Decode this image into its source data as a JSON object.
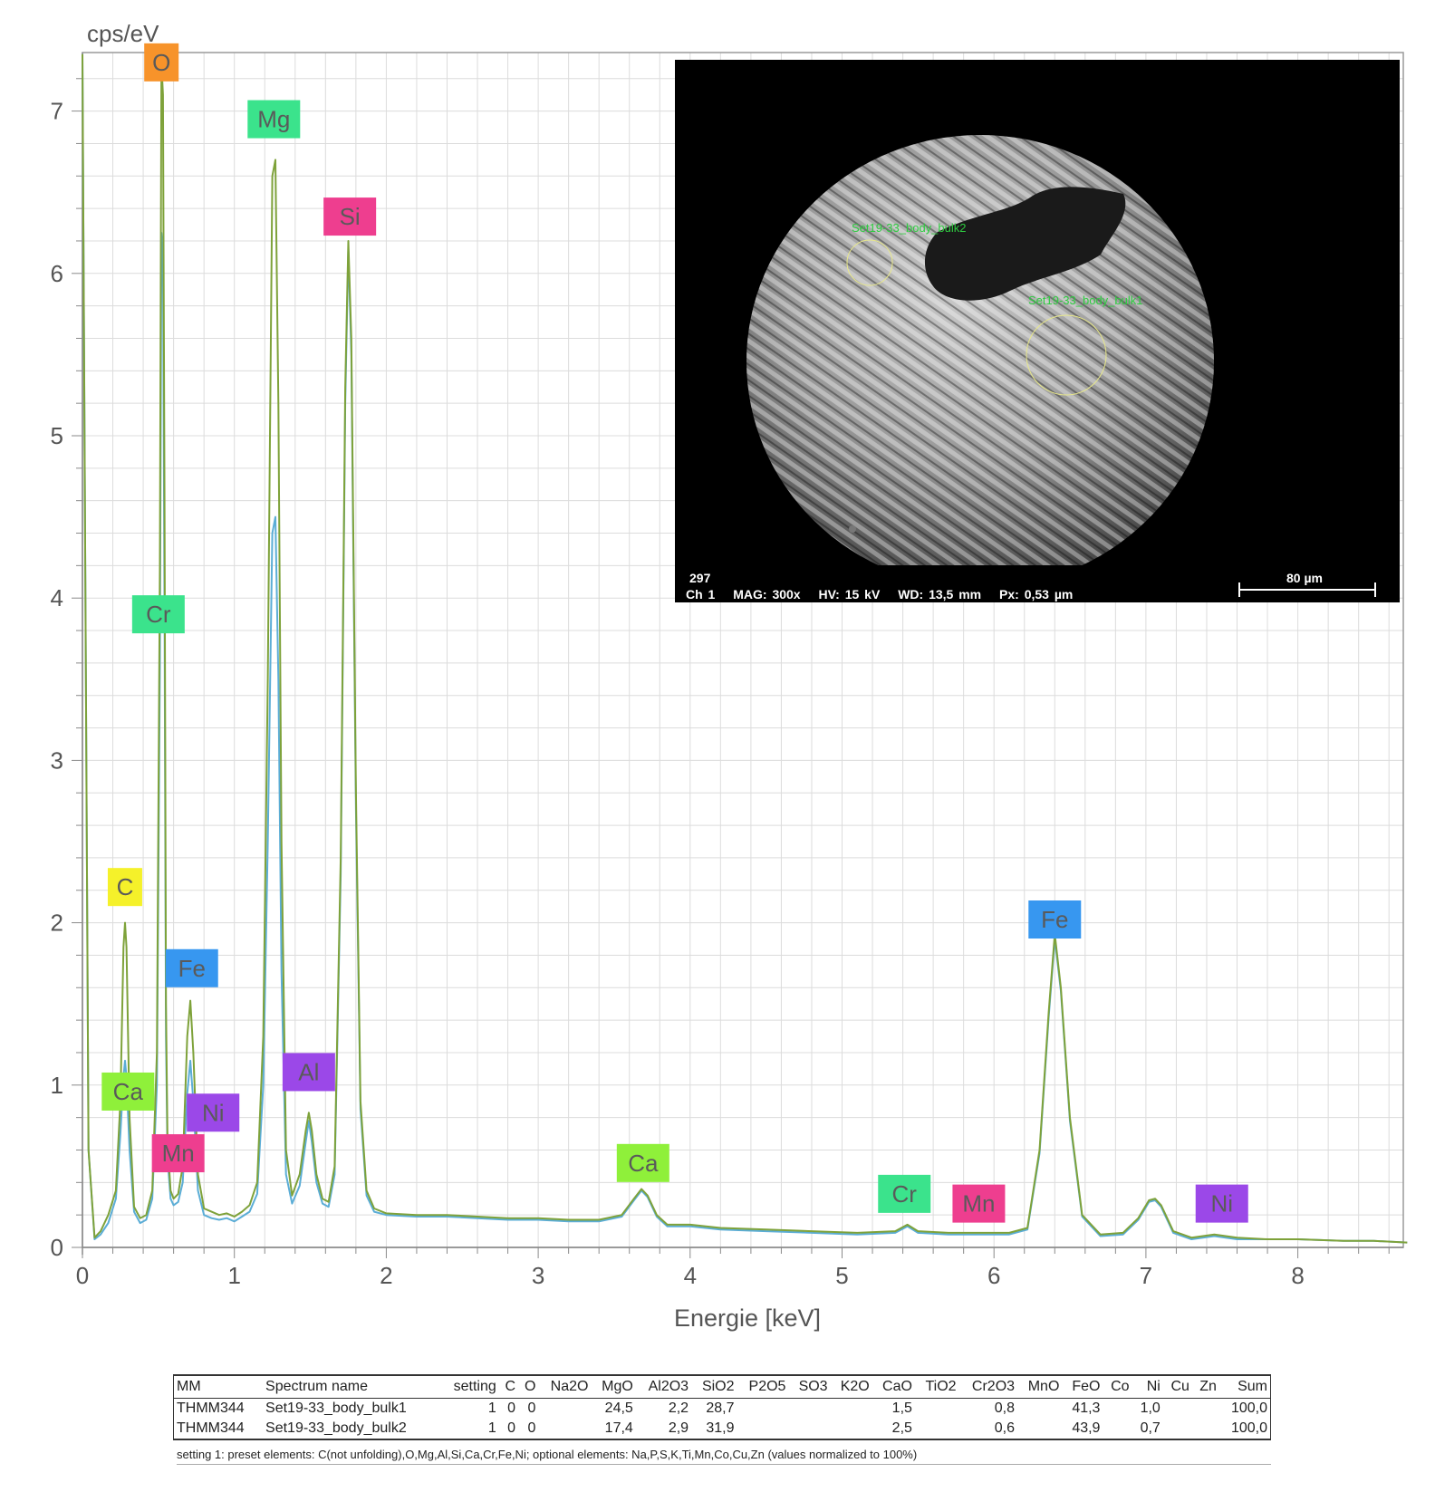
{
  "chart_data": {
    "type": "line",
    "y_unit_label": "cps/eV",
    "xlabel": "Energie [keV]",
    "xlim": [
      0,
      8.75
    ],
    "ylim": [
      0,
      7.35
    ],
    "x_ticks": [
      0,
      1,
      2,
      3,
      4,
      5,
      6,
      7,
      8
    ],
    "y_ticks": [
      0,
      1,
      2,
      3,
      4,
      5,
      6,
      7
    ],
    "grid": true,
    "series": [
      {
        "color": "#7ea23a",
        "x": [
          0.0,
          0.04,
          0.08,
          0.12,
          0.17,
          0.22,
          0.25,
          0.27,
          0.28,
          0.29,
          0.31,
          0.34,
          0.38,
          0.42,
          0.46,
          0.49,
          0.51,
          0.52,
          0.53,
          0.54,
          0.55,
          0.56,
          0.58,
          0.6,
          0.63,
          0.66,
          0.69,
          0.71,
          0.73,
          0.76,
          0.8,
          0.85,
          0.9,
          0.95,
          1.0,
          1.05,
          1.1,
          1.15,
          1.19,
          1.22,
          1.25,
          1.27,
          1.29,
          1.31,
          1.34,
          1.38,
          1.43,
          1.47,
          1.49,
          1.51,
          1.54,
          1.58,
          1.62,
          1.66,
          1.7,
          1.73,
          1.75,
          1.77,
          1.8,
          1.83,
          1.87,
          1.92,
          2.0,
          2.2,
          2.4,
          2.6,
          2.8,
          3.0,
          3.2,
          3.4,
          3.55,
          3.63,
          3.68,
          3.72,
          3.78,
          3.85,
          4.0,
          4.2,
          4.5,
          4.8,
          5.1,
          5.35,
          5.43,
          5.5,
          5.7,
          5.9,
          6.1,
          6.22,
          6.3,
          6.36,
          6.4,
          6.44,
          6.5,
          6.58,
          6.7,
          6.85,
          6.95,
          7.02,
          7.06,
          7.1,
          7.18,
          7.3,
          7.45,
          7.6,
          7.8,
          8.0,
          8.3,
          8.5,
          8.72
        ],
        "values": [
          7.35,
          0.6,
          0.06,
          0.1,
          0.2,
          0.35,
          0.9,
          1.85,
          2.0,
          1.85,
          0.8,
          0.25,
          0.18,
          0.2,
          0.35,
          1.2,
          4.2,
          7.3,
          7.1,
          4.6,
          1.5,
          0.65,
          0.35,
          0.3,
          0.33,
          0.5,
          1.3,
          1.52,
          1.2,
          0.45,
          0.24,
          0.22,
          0.2,
          0.21,
          0.19,
          0.22,
          0.26,
          0.4,
          1.3,
          3.5,
          6.6,
          6.7,
          5.2,
          2.5,
          0.6,
          0.32,
          0.45,
          0.72,
          0.83,
          0.72,
          0.45,
          0.3,
          0.28,
          0.5,
          2.4,
          5.3,
          6.2,
          5.6,
          2.8,
          0.9,
          0.35,
          0.24,
          0.21,
          0.2,
          0.2,
          0.19,
          0.18,
          0.18,
          0.17,
          0.17,
          0.2,
          0.3,
          0.36,
          0.32,
          0.2,
          0.14,
          0.14,
          0.12,
          0.11,
          0.1,
          0.09,
          0.1,
          0.14,
          0.1,
          0.09,
          0.09,
          0.09,
          0.12,
          0.6,
          1.45,
          1.93,
          1.6,
          0.8,
          0.2,
          0.08,
          0.09,
          0.18,
          0.29,
          0.3,
          0.26,
          0.1,
          0.06,
          0.08,
          0.06,
          0.05,
          0.05,
          0.04,
          0.04,
          0.03
        ]
      },
      {
        "color": "#5badd6",
        "x": [
          0.0,
          0.04,
          0.08,
          0.12,
          0.17,
          0.22,
          0.25,
          0.27,
          0.28,
          0.29,
          0.31,
          0.34,
          0.38,
          0.42,
          0.46,
          0.49,
          0.51,
          0.52,
          0.53,
          0.54,
          0.55,
          0.56,
          0.58,
          0.6,
          0.63,
          0.66,
          0.69,
          0.71,
          0.73,
          0.76,
          0.8,
          0.85,
          0.9,
          0.95,
          1.0,
          1.05,
          1.1,
          1.15,
          1.19,
          1.22,
          1.25,
          1.27,
          1.29,
          1.31,
          1.34,
          1.38,
          1.43,
          1.47,
          1.49,
          1.51,
          1.54,
          1.58,
          1.62,
          1.66,
          1.7,
          1.73,
          1.75,
          1.77,
          1.8,
          1.83,
          1.87,
          1.92,
          2.0,
          2.2,
          2.4,
          2.6,
          2.8,
          3.0,
          3.2,
          3.4,
          3.55,
          3.63,
          3.68,
          3.72,
          3.78,
          3.85,
          4.0,
          4.2,
          4.5,
          4.8,
          5.1,
          5.35,
          5.43,
          5.5,
          5.7,
          5.9,
          6.1,
          6.22,
          6.3,
          6.36,
          6.4,
          6.44,
          6.5,
          6.58,
          6.7,
          6.85,
          6.95,
          7.02,
          7.06,
          7.1,
          7.18,
          7.3,
          7.45,
          7.6,
          7.8,
          8.0,
          8.3,
          8.5,
          8.72
        ],
        "values": [
          7.35,
          0.6,
          0.05,
          0.08,
          0.15,
          0.3,
          0.7,
          1.05,
          1.15,
          1.05,
          0.6,
          0.22,
          0.15,
          0.17,
          0.3,
          1.0,
          3.6,
          6.25,
          6.1,
          3.9,
          1.3,
          0.55,
          0.3,
          0.26,
          0.28,
          0.4,
          0.95,
          1.15,
          0.9,
          0.35,
          0.2,
          0.18,
          0.17,
          0.18,
          0.16,
          0.19,
          0.22,
          0.33,
          1.0,
          2.5,
          4.4,
          4.5,
          3.5,
          1.7,
          0.45,
          0.27,
          0.38,
          0.65,
          0.78,
          0.65,
          0.4,
          0.27,
          0.25,
          0.45,
          2.3,
          5.2,
          6.15,
          5.5,
          2.7,
          0.85,
          0.32,
          0.22,
          0.2,
          0.19,
          0.19,
          0.18,
          0.17,
          0.17,
          0.16,
          0.16,
          0.19,
          0.29,
          0.35,
          0.31,
          0.19,
          0.13,
          0.13,
          0.11,
          0.1,
          0.09,
          0.08,
          0.09,
          0.13,
          0.09,
          0.08,
          0.08,
          0.08,
          0.11,
          0.58,
          1.42,
          1.9,
          1.58,
          0.78,
          0.19,
          0.07,
          0.08,
          0.17,
          0.28,
          0.29,
          0.25,
          0.09,
          0.05,
          0.07,
          0.05,
          0.05,
          0.05,
          0.04,
          0.04,
          0.03
        ]
      }
    ],
    "annotations": [
      {
        "text": "O",
        "x": 0.52,
        "y": 7.3,
        "color": "#f7932a"
      },
      {
        "text": "Mg",
        "x": 1.26,
        "y": 6.95,
        "color": "#3be38c"
      },
      {
        "text": "Si",
        "x": 1.76,
        "y": 6.35,
        "color": "#ee3e8f"
      },
      {
        "text": "Cr",
        "x": 0.5,
        "y": 3.9,
        "color": "#3be38c"
      },
      {
        "text": "C",
        "x": 0.28,
        "y": 2.22,
        "color": "#f5f12a"
      },
      {
        "text": "Fe",
        "x": 0.72,
        "y": 1.72,
        "color": "#3797f0"
      },
      {
        "text": "Ca",
        "x": 0.3,
        "y": 0.96,
        "color": "#8ff03a"
      },
      {
        "text": "Ni",
        "x": 0.86,
        "y": 0.83,
        "color": "#9b48e8"
      },
      {
        "text": "Mn",
        "x": 0.63,
        "y": 0.58,
        "color": "#ee3e8f"
      },
      {
        "text": "Al",
        "x": 1.49,
        "y": 1.08,
        "color": "#9b48e8"
      },
      {
        "text": "Ca",
        "x": 3.69,
        "y": 0.52,
        "color": "#8ff03a"
      },
      {
        "text": "Cr",
        "x": 5.41,
        "y": 0.33,
        "color": "#3be38c"
      },
      {
        "text": "Mn",
        "x": 5.9,
        "y": 0.27,
        "color": "#ee3e8f"
      },
      {
        "text": "Fe",
        "x": 6.4,
        "y": 2.02,
        "color": "#3797f0"
      },
      {
        "text": "Ni",
        "x": 7.5,
        "y": 0.27,
        "color": "#9b48e8"
      }
    ]
  },
  "sem_image": {
    "frame_id": "297",
    "channel": "Ch 1",
    "mag": "MAG: 300x",
    "hv": "HV: 15 kV",
    "wd": "WD: 13,5 mm",
    "px": "Px: 0,53 µm",
    "scale_bar": "80 µm",
    "roi_1": "Set19-33_body_bulk2",
    "roi_2": "Set19-33_body_bulk1"
  },
  "table": {
    "headers": [
      "MM",
      "Spectrum name",
      "setting",
      "C",
      "O",
      "Na2O",
      "MgO",
      "Al2O3",
      "SiO2",
      "P2O5",
      "SO3",
      "K2O",
      "CaO",
      "TiO2",
      "Cr2O3",
      "MnO",
      "FeO",
      "Co",
      "Ni",
      "Cu",
      "Zn",
      "Sum"
    ],
    "rows": [
      [
        "THMM344",
        "Set19-33_body_bulk1",
        "1",
        "0",
        "0",
        "",
        "24,5",
        "2,2",
        "28,7",
        "",
        "",
        "",
        "1,5",
        "",
        "0,8",
        "",
        "41,3",
        "",
        "1,0",
        "",
        "",
        "100,0"
      ],
      [
        "THMM344",
        "Set19-33_body_bulk2",
        "1",
        "0",
        "0",
        "",
        "17,4",
        "2,9",
        "31,9",
        "",
        "",
        "",
        "2,5",
        "",
        "0,6",
        "",
        "43,9",
        "",
        "0,7",
        "",
        "",
        "100,0"
      ]
    ],
    "footnote": "setting 1: preset elements: C(not unfolding),O,Mg,Al,Si,Ca,Cr,Fe,Ni; optional elements: Na,P,S,K,Ti,Mn,Co,Cu,Zn (values normalized to 100%)"
  }
}
